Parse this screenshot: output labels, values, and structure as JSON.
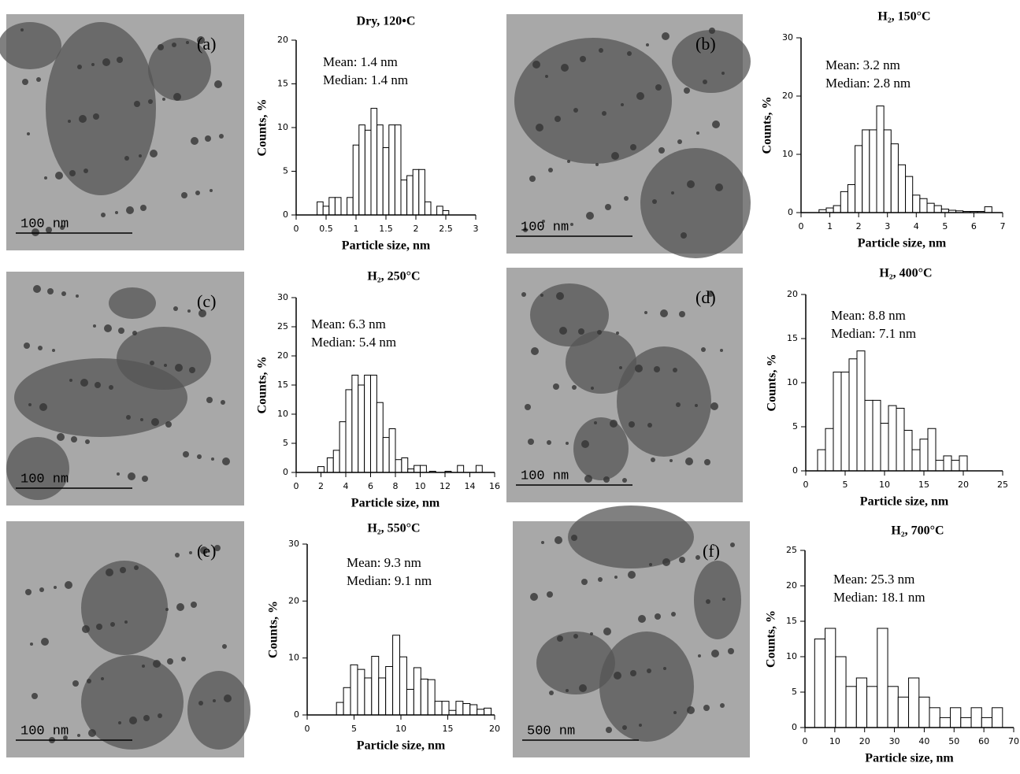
{
  "images": [
    {
      "label": "(a)",
      "scale": "100 nm"
    },
    {
      "label": "(b)",
      "scale": "100 nm"
    },
    {
      "label": "(c)",
      "scale": "100 nm"
    },
    {
      "label": "(d)",
      "scale": "100 nm"
    },
    {
      "label": "(e)",
      "scale": "100 nm"
    },
    {
      "label": "(f)",
      "scale": "500 nm"
    }
  ],
  "chart_data": [
    {
      "type": "bar",
      "title": "Dry, 120•C",
      "annotations": [
        "Mean: 1.4 nm",
        "Median: 1.4 nm"
      ],
      "x_label": "Particle size, nm",
      "y_label": "Counts, %",
      "color": "#ffffff",
      "x": [
        0.4,
        0.5,
        0.6,
        0.7,
        0.9,
        1.0,
        1.1,
        1.2,
        1.3,
        1.4,
        1.5,
        1.6,
        1.7,
        1.8,
        1.9,
        2.0,
        2.1,
        2.2,
        2.4,
        2.5
      ],
      "values": [
        1.5,
        1,
        2,
        2,
        2,
        8,
        10.3,
        9.7,
        12.2,
        10.3,
        7.7,
        10.3,
        10.3,
        4,
        4.5,
        5.2,
        5.2,
        1.5,
        1,
        0.5
      ],
      "xlim": [
        0,
        3
      ],
      "xticks": [
        0,
        0.5,
        1,
        1.5,
        2,
        2.5,
        3
      ],
      "ylim": [
        0,
        20
      ],
      "yticks": [
        0,
        5,
        10,
        15,
        20
      ]
    },
    {
      "type": "bar",
      "title": "H₂, 150°C",
      "annotations": [
        "Mean: 3.2 nm",
        "Median: 2.8 nm"
      ],
      "x_label": "Particle size, nm",
      "y_label": "Counts, %",
      "color": "#ffffff",
      "x": [
        0.75,
        1.0,
        1.25,
        1.5,
        1.75,
        2.0,
        2.25,
        2.5,
        2.75,
        3.0,
        3.25,
        3.5,
        3.75,
        4.0,
        4.25,
        4.5,
        4.75,
        5.0,
        5.25,
        5.5,
        5.75,
        6.0,
        6.25,
        6.5
      ],
      "values": [
        0.5,
        0.8,
        1.2,
        3.6,
        4.8,
        11.5,
        14.2,
        14.2,
        18.3,
        14.2,
        11.8,
        8.2,
        6.2,
        3,
        2.4,
        1.6,
        1.2,
        0.6,
        0.4,
        0.3,
        0.2,
        0.2,
        0.2,
        1
      ],
      "xlim": [
        0,
        7
      ],
      "xticks": [
        0,
        1,
        2,
        3,
        4,
        5,
        6,
        7
      ],
      "ylim": [
        0,
        30
      ],
      "yticks": [
        0,
        10,
        20,
        30
      ]
    },
    {
      "type": "bar",
      "title": "H₂, 250°C",
      "annotations": [
        "Mean: 6.3 nm",
        "Median: 5.4 nm"
      ],
      "x_label": "Particle size, nm",
      "y_label": "Counts, %",
      "color": "#ffffff",
      "x": [
        2.0,
        2.75,
        3.25,
        3.75,
        4.25,
        4.75,
        5.25,
        5.75,
        6.25,
        6.75,
        7.25,
        7.75,
        8.25,
        8.75,
        9.25,
        9.75,
        10.25,
        11.0,
        12.25,
        13.25,
        14.75
      ],
      "values": [
        1,
        2.5,
        3.8,
        8.7,
        14.2,
        16.7,
        15,
        16.7,
        16.7,
        12,
        6,
        7.5,
        2.2,
        2.5,
        0.6,
        1.2,
        1.2,
        0.2,
        0.2,
        1.2,
        1.2
      ],
      "xlim": [
        0,
        16
      ],
      "xticks": [
        0,
        2,
        4,
        6,
        8,
        10,
        12,
        14,
        16
      ],
      "ylim": [
        0,
        30
      ],
      "yticks": [
        0,
        5,
        10,
        15,
        20,
        25,
        30
      ]
    },
    {
      "type": "bar",
      "title": "H₂, 400°C",
      "annotations": [
        "Mean: 8.8 nm",
        "Median: 7.1 nm"
      ],
      "x_label": "Particle size, nm",
      "y_label": "Counts, %",
      "color": "#ffffff",
      "x": [
        2,
        3,
        4,
        5,
        6,
        7,
        8,
        9,
        10,
        11,
        12,
        13,
        14,
        15,
        16,
        17,
        18,
        19,
        20
      ],
      "values": [
        2.4,
        4.8,
        11.2,
        11.2,
        12.7,
        13.6,
        8,
        8,
        5.4,
        7.4,
        7.1,
        4.6,
        2.4,
        3.6,
        4.8,
        1.2,
        1.7,
        1.2,
        1.7
      ],
      "xlim": [
        0,
        25
      ],
      "xticks": [
        0,
        5,
        10,
        15,
        20,
        25
      ],
      "ylim": [
        0,
        20
      ],
      "yticks": [
        0,
        5,
        10,
        15,
        20
      ]
    },
    {
      "type": "bar",
      "title": "H₂, 550°C",
      "annotations": [
        "Mean: 9.3 nm",
        "Median: 9.1 nm"
      ],
      "x_label": "Particle size, nm",
      "y_label": "Counts, %",
      "color": "#ffffff",
      "x": [
        3.5,
        4.25,
        5,
        5.75,
        6.5,
        7.25,
        8,
        8.75,
        9.5,
        10.25,
        11,
        11.75,
        12.5,
        13.25,
        14,
        14.75,
        15.5,
        16.25,
        17,
        17.75,
        18.5,
        19.25
      ],
      "values": [
        2.2,
        4.8,
        8.8,
        8,
        6.5,
        10.3,
        6.5,
        8.5,
        14,
        10.2,
        4.5,
        8.3,
        6.3,
        6.2,
        2.4,
        2.4,
        0.8,
        2.4,
        2,
        1.8,
        1,
        1.2
      ],
      "xlim": [
        0,
        20
      ],
      "xticks": [
        0,
        5,
        10,
        15,
        20
      ],
      "ylim": [
        0,
        30
      ],
      "yticks": [
        0,
        10,
        20,
        30
      ]
    },
    {
      "type": "bar",
      "title": "H₂, 700°C",
      "annotations": [
        "Mean: 25.3 nm",
        "Median: 18.1 nm"
      ],
      "x_label": "Particle size, nm",
      "y_label": "Counts, %",
      "color": "#ffffff",
      "x": [
        5,
        8.5,
        12,
        15.5,
        19,
        22.5,
        26,
        29.5,
        33,
        36.5,
        40,
        43.5,
        47,
        50.5,
        54,
        57.5,
        61,
        64.5
      ],
      "values": [
        12.5,
        14,
        10,
        5.8,
        7,
        5.8,
        14,
        5.8,
        4.3,
        7,
        4.3,
        2.8,
        1.4,
        2.8,
        1.4,
        2.8,
        1.4,
        2.8
      ],
      "xlim": [
        0,
        70
      ],
      "xticks": [
        0,
        10,
        20,
        30,
        40,
        50,
        60,
        70
      ],
      "ylim": [
        0,
        25
      ],
      "yticks": [
        0,
        5,
        10,
        15,
        20,
        25
      ]
    }
  ]
}
